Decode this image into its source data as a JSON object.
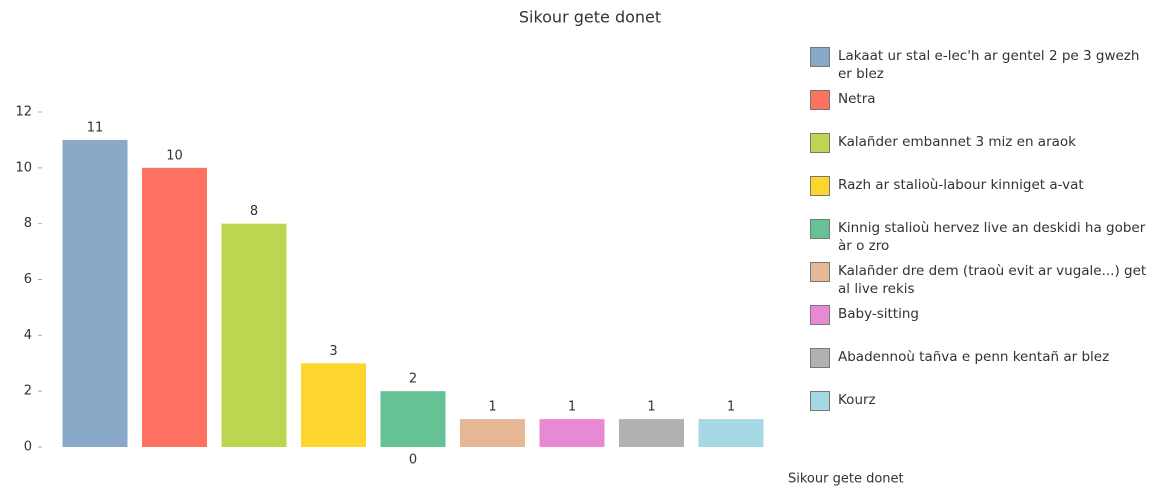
{
  "chart_data": {
    "type": "bar",
    "title": "Sikour gete donet",
    "categories": [
      "Lakaat ur stal e-lec'h ar gentel 2 pe 3 gwezh er blez",
      "Netra",
      "Kalañder embannet 3 miz en araok",
      "Razh ar stalioù-labour kinniget a-vat",
      "Kinnig stalioù hervez live an deskidi ha gober àr o zro",
      "Kalañder dre dem (traoù evit ar vugale...) get al live rekis",
      "Baby-sitting",
      "Abadennoù tañva e penn kentañ ar blez",
      "Kourz"
    ],
    "values": [
      11,
      10,
      8,
      3,
      2,
      1,
      1,
      1,
      1
    ],
    "colors": [
      "#8aa9c9",
      "#fe7262",
      "#bcd74f",
      "#fdd52f",
      "#66c194",
      "#e5b795",
      "#e88ad3",
      "#b1b1b1",
      "#a6d8e6"
    ],
    "ylim": [
      0,
      12
    ],
    "yticks": [
      0,
      2,
      4,
      6,
      8,
      10,
      12
    ],
    "annotation": "0",
    "xlabel": "Sikour gete donet"
  }
}
